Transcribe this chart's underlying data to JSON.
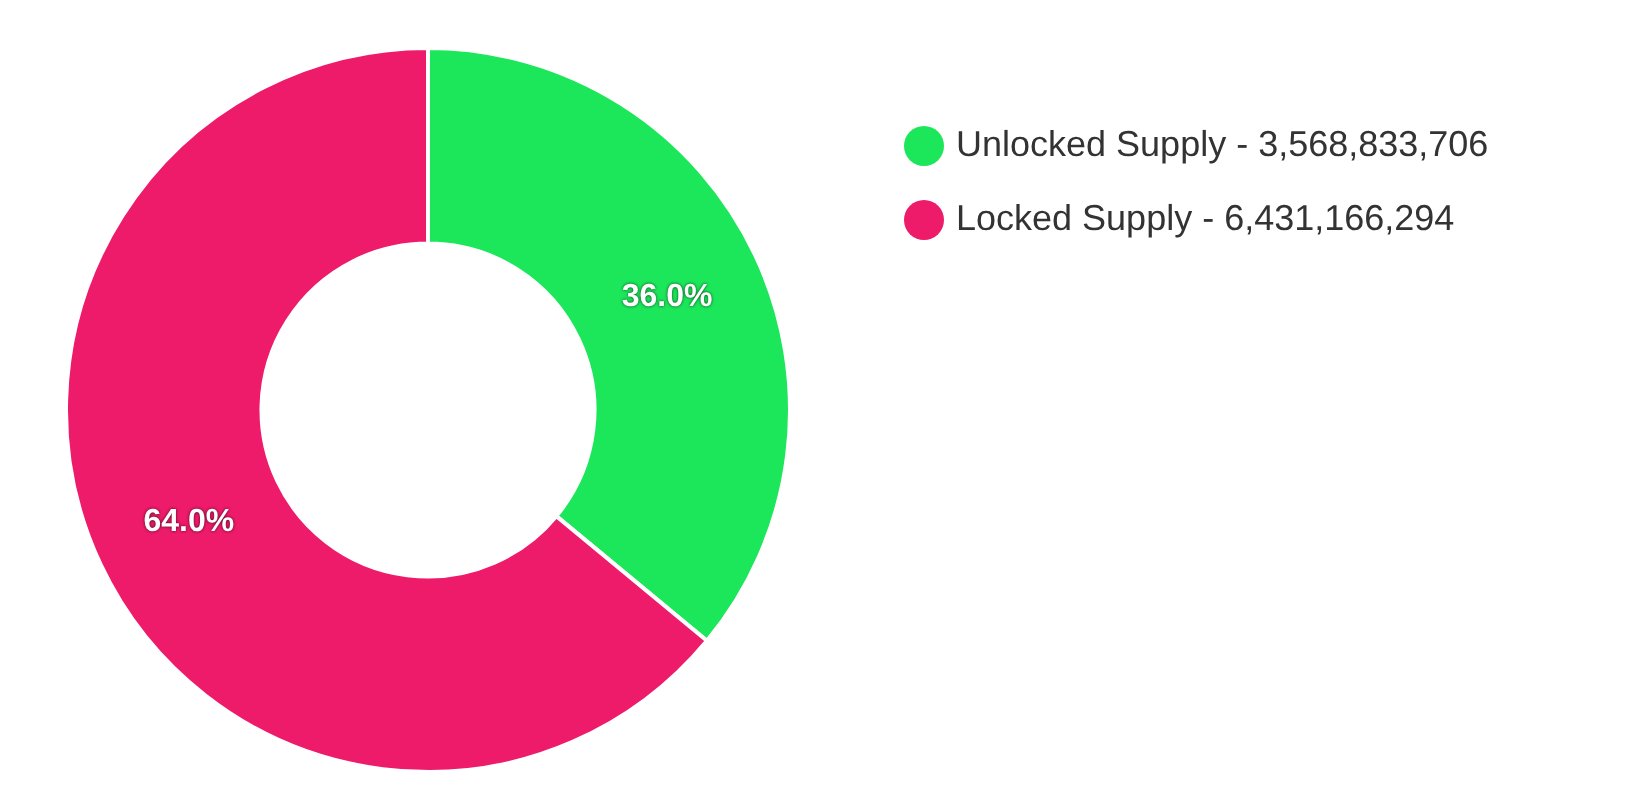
{
  "chart_data": {
    "type": "donut",
    "categories": [
      "Unlocked Supply - 3,568,833,706",
      "Locked Supply - 6,431,166,294"
    ],
    "values": [
      36.0,
      64.0
    ],
    "colors": [
      "#1ce65a",
      "#ee1a6a"
    ],
    "value_labels": [
      "36.0%",
      "64.0%"
    ],
    "legend": "top right"
  }
}
